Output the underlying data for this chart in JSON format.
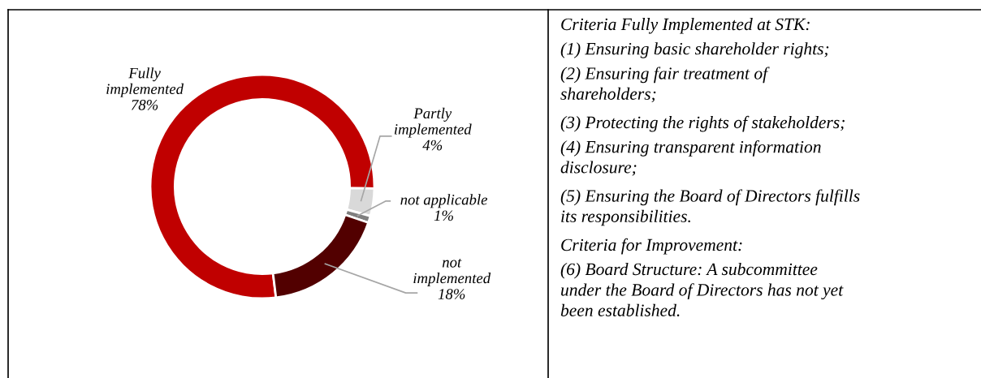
{
  "chart_data": [
    {
      "type": "donut",
      "categories": [
        "Fully\nimplemented",
        "Partly\nimplemented",
        "not applicable",
        "not\nimplemented"
      ],
      "values": [
        78,
        4,
        1,
        18
      ],
      "colors": [
        "#c00000",
        "#d9d9d9",
        "#7f7f7f",
        "#520000"
      ],
      "value_labels": [
        "78%",
        "4%",
        "1%",
        "18%"
      ],
      "legend": false
    },
    {
      "type": "other",
      "annotations": [
        "Criteria Fully Implemented at STK:",
        "(1) Ensuring basic shareholder rights;",
        "(2) Ensuring fair treatment of\nshareholders;",
        "(3) Protecting the rights of stakeholders;",
        "(4) Ensuring transparent information\ndisclosure;",
        "(5) Ensuring the Board of Directors fulfills\nits responsibilities.",
        "Criteria for Improvement:",
        "(6) Board Structure: A subcommittee\nunder the Board of Directors has not yet\nbeen established."
      ]
    }
  ]
}
